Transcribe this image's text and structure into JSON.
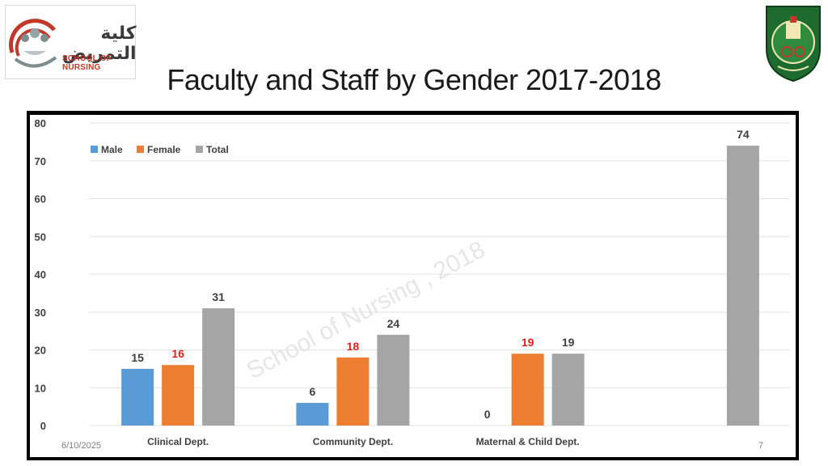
{
  "slide": {
    "title": "Faculty and Staff by Gender 2017-2018",
    "date": "6/10/2025",
    "page_number": "7",
    "logo_left_arabic": "كلية التمريض",
    "logo_left_english": "SCHOOL OF NURSING"
  },
  "chart_data": {
    "type": "bar",
    "title": "",
    "xlabel": "",
    "ylabel": "",
    "categories": [
      "Clinical Dept.",
      "Community Dept.",
      "Maternal & Child Dept.",
      ""
    ],
    "series": [
      {
        "name": "Male",
        "color": "#5b9bd5",
        "label_color": "#404040",
        "values": [
          15,
          6,
          0,
          null
        ]
      },
      {
        "name": "Female",
        "color": "#ed7d31",
        "label_color": "#e02020",
        "values": [
          16,
          18,
          19,
          null
        ]
      },
      {
        "name": "Total",
        "color": "#a5a5a5",
        "label_color": "#404040",
        "values": [
          31,
          24,
          19,
          74
        ]
      }
    ],
    "ylim": [
      0,
      80
    ],
    "yticks": [
      0,
      10,
      20,
      30,
      40,
      50,
      60,
      70,
      80
    ],
    "grid": true,
    "legend_position": "top-left",
    "watermark": "School of Nursing , 2018"
  }
}
